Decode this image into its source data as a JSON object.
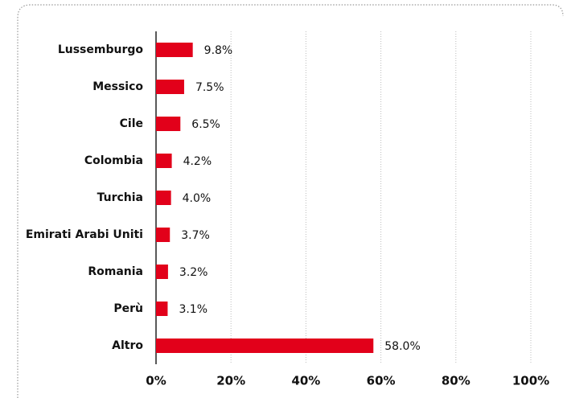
{
  "chart_data": {
    "type": "bar",
    "orientation": "horizontal",
    "categories": [
      "Lussemburgo",
      "Messico",
      "Cile",
      "Colombia",
      "Turchia",
      "Emirati Arabi Uniti",
      "Romania",
      "Perù",
      "Altro"
    ],
    "values": [
      9.8,
      7.5,
      6.5,
      4.2,
      4.0,
      3.7,
      3.2,
      3.1,
      58.0
    ],
    "value_labels": [
      "9.8%",
      "7.5%",
      "6.5%",
      "4.2%",
      "4.0%",
      "3.7%",
      "3.2%",
      "3.1%",
      "58.0%"
    ],
    "color": "#e2001a",
    "xlim": [
      0,
      100
    ],
    "xticks": [
      {
        "value": 0,
        "label": "0%"
      },
      {
        "value": 20,
        "label": "20%"
      },
      {
        "value": 40,
        "label": "40%"
      },
      {
        "value": 60,
        "label": "60%"
      },
      {
        "value": 80,
        "label": "80%"
      },
      {
        "value": 100,
        "label": "100%"
      }
    ],
    "grid": true
  }
}
